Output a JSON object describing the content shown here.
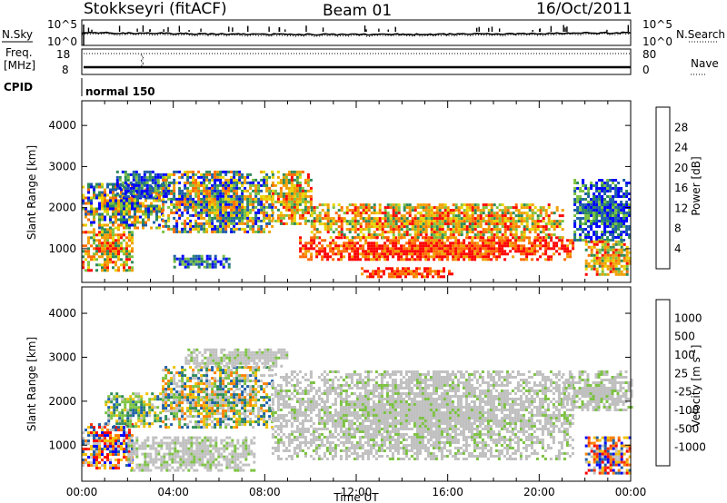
{
  "header": {
    "station": "Stokkseyri (fitACF)",
    "beam": "Beam 01",
    "date": "16/Oct/2011"
  },
  "top_panels": {
    "nsky_label": "N.Sky",
    "nsky_ticks": [
      "10^5",
      "10^0"
    ],
    "nsearch_label": "N.Search",
    "nsearch_ticks": [
      "10^5",
      "10^0"
    ],
    "freq_label_1": "Freq.",
    "freq_label_2": "[MHz]",
    "freq_ticks": [
      "18",
      "8"
    ],
    "nave_label": "Nave",
    "nave_ticks": [
      "80",
      "0"
    ],
    "cpid_label": "CPID",
    "cpid_value": "normal 150"
  },
  "chart_data": [
    {
      "type": "heatmap",
      "panel": "power",
      "ylabel": "Slant Range [km]",
      "ylim": [
        180,
        4600
      ],
      "yticks": [
        1000,
        2000,
        3000,
        4000
      ],
      "xlim": [
        "00:00",
        "24:00"
      ],
      "colorbar": {
        "label": "Power [dB]",
        "ticks": [
          "4",
          "8",
          "12",
          "16",
          "20",
          "24",
          "28"
        ],
        "colors": [
          "#0000ff",
          "#1f5fa8",
          "#2e8b57",
          "#7cc242",
          "#e8d500",
          "#f0a000",
          "#ff6a00",
          "#ff0000"
        ]
      },
      "echo_regions": [
        {
          "t": [
            0.0,
            2.2
          ],
          "r": [
            500,
            1500
          ],
          "level": "high"
        },
        {
          "t": [
            0.0,
            3.5
          ],
          "r": [
            1500,
            2600
          ],
          "level": "mid"
        },
        {
          "t": [
            1.5,
            3.8
          ],
          "r": [
            2300,
            2900
          ],
          "level": "low"
        },
        {
          "t": [
            3.5,
            8.3
          ],
          "r": [
            1400,
            2900
          ],
          "level": "mid"
        },
        {
          "t": [
            4.0,
            6.5
          ],
          "r": [
            550,
            850
          ],
          "level": "low"
        },
        {
          "t": [
            8.3,
            10.0
          ],
          "r": [
            1600,
            2900
          ],
          "level": "high"
        },
        {
          "t": [
            9.5,
            21.5
          ],
          "r": [
            750,
            1300
          ],
          "level": "max"
        },
        {
          "t": [
            10.0,
            21.0
          ],
          "r": [
            1300,
            2100
          ],
          "level": "high"
        },
        {
          "t": [
            12.2,
            16.2
          ],
          "r": [
            350,
            550
          ],
          "level": "max"
        },
        {
          "t": [
            21.5,
            24.0
          ],
          "r": [
            1200,
            2700
          ],
          "level": "low"
        },
        {
          "t": [
            22.0,
            24.0
          ],
          "r": [
            350,
            1200
          ],
          "level": "high"
        }
      ]
    },
    {
      "type": "heatmap",
      "panel": "velocity",
      "ylabel": "Slant Range [km]",
      "xlabel": "Time UT",
      "ylim": [
        180,
        4600
      ],
      "yticks": [
        1000,
        2000,
        3000,
        4000
      ],
      "xlim": [
        "00:00",
        "24:00"
      ],
      "xticks": [
        "00:00",
        "04:00",
        "08:00",
        "12:00",
        "16:00",
        "20:00",
        "00:00"
      ],
      "colorbar": {
        "label": "Velocity [m s^-1]",
        "ticks": [
          "1000",
          "500",
          "100",
          "25",
          "-25",
          "-100",
          "-500",
          "-1000"
        ],
        "colors": [
          "#0000ff",
          "#1f5fa8",
          "#2e8b57",
          "#7cc242",
          "#c0c0c0",
          "#f0c000",
          "#ff8000",
          "#ff3000",
          "#ff0000"
        ]
      },
      "echo_regions": [
        {
          "t": [
            0.0,
            2.2
          ],
          "r": [
            500,
            1500
          ],
          "level": "neg"
        },
        {
          "t": [
            1.0,
            3.5
          ],
          "r": [
            1400,
            2200
          ],
          "level": "pos"
        },
        {
          "t": [
            3.5,
            8.3
          ],
          "r": [
            1400,
            2800
          ],
          "level": "mixed"
        },
        {
          "t": [
            2.0,
            7.5
          ],
          "r": [
            450,
            1200
          ],
          "level": "ground"
        },
        {
          "t": [
            4.5,
            9.0
          ],
          "r": [
            2800,
            3200
          ],
          "level": "ground"
        },
        {
          "t": [
            8.3,
            21.5
          ],
          "r": [
            700,
            2700
          ],
          "level": "ground"
        },
        {
          "t": [
            21.0,
            24.0
          ],
          "r": [
            1800,
            2700
          ],
          "level": "ground"
        },
        {
          "t": [
            22.0,
            24.0
          ],
          "r": [
            350,
            1200
          ],
          "level": "neg"
        }
      ]
    }
  ]
}
